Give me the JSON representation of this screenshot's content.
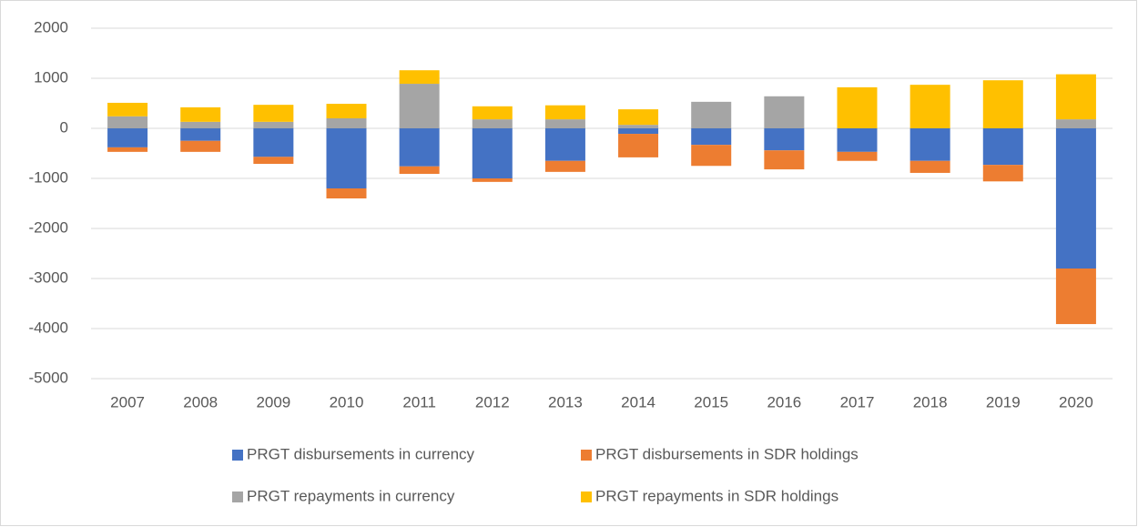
{
  "chart_data": {
    "type": "stacked_bar",
    "categories": [
      "2007",
      "2008",
      "2009",
      "2010",
      "2011",
      "2012",
      "2013",
      "2014",
      "2015",
      "2016",
      "2017",
      "2018",
      "2019",
      "2020"
    ],
    "series": [
      {
        "name": "PRGT disbursements in currency",
        "color": "#4472c4",
        "values": [
          -380,
          -250,
          -570,
          -1200,
          -760,
          -1000,
          -650,
          -110,
          -330,
          -440,
          -470,
          -650,
          -730,
          -2800
        ]
      },
      {
        "name": "PRGT disbursements in SDR holdings",
        "color": "#ed7d31",
        "values": [
          -90,
          -220,
          -140,
          -200,
          -150,
          -70,
          -220,
          -470,
          -420,
          -380,
          -180,
          -240,
          -330,
          -1110
        ]
      },
      {
        "name": "PRGT repayments in currency",
        "color": "#a5a5a5",
        "values": [
          240,
          130,
          130,
          200,
          890,
          180,
          180,
          70,
          530,
          640,
          0,
          0,
          0,
          180
        ]
      },
      {
        "name": "PRGT repayments in SDR holdings",
        "color": "#ffc000",
        "values": [
          270,
          290,
          340,
          290,
          270,
          260,
          280,
          310,
          0,
          0,
          820,
          870,
          960,
          900
        ]
      }
    ],
    "ylim": [
      -5000,
      2000
    ],
    "yticks": [
      2000,
      1000,
      0,
      -1000,
      -2000,
      -3000,
      -4000,
      -5000
    ],
    "grid": true
  }
}
